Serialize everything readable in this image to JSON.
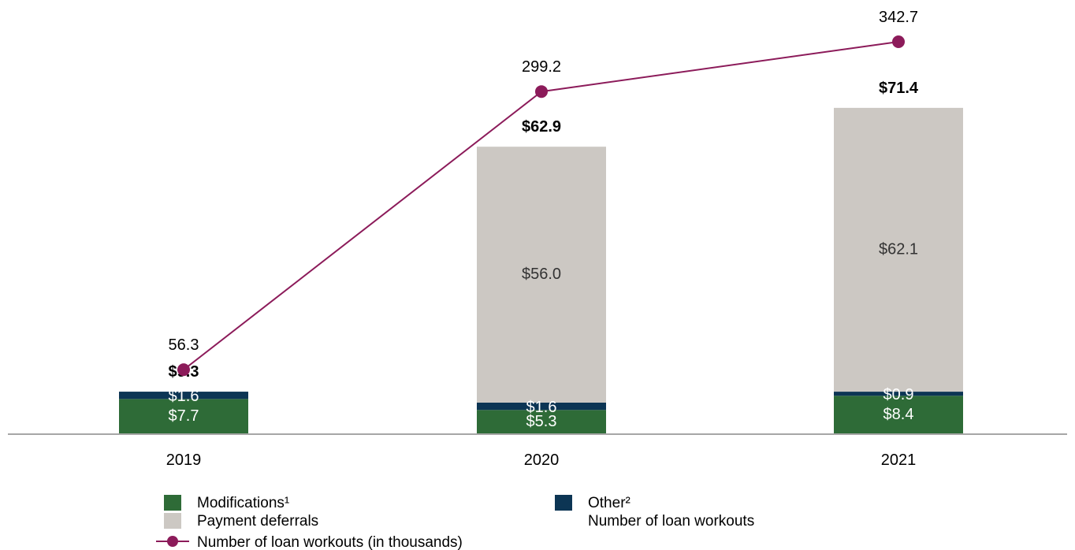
{
  "chart_data": {
    "type": "bar",
    "stacked": true,
    "categories": [
      "2019",
      "2020",
      "2021"
    ],
    "series": [
      {
        "name": "Modifications¹",
        "color": "#2e6b37",
        "values": [
          7.7,
          5.3,
          8.4
        ],
        "labels": [
          "$7.7",
          "$5.3",
          "$8.4"
        ]
      },
      {
        "name": "Other²",
        "color": "#0c3554",
        "values": [
          1.6,
          1.6,
          0.9
        ],
        "labels": [
          "$1.6",
          "$1.6",
          "$0.9"
        ]
      },
      {
        "name": "Payment deferrals",
        "color": "#ccc8c3",
        "values": [
          0,
          56.0,
          62.1
        ],
        "labels": [
          "",
          "$56.0",
          "$62.1"
        ]
      }
    ],
    "totals": [
      "$9.3",
      "$62.9",
      "$71.4"
    ],
    "line": {
      "name": "Number of loan workouts (in thousands)",
      "color": "#8c1b5a",
      "values": [
        56.3,
        299.2,
        342.7
      ],
      "labels": [
        "56.3",
        "299.2",
        "342.7"
      ]
    },
    "extra_legend_text": "Number of loan workouts",
    "legend_position": "bottom",
    "grid": false
  }
}
